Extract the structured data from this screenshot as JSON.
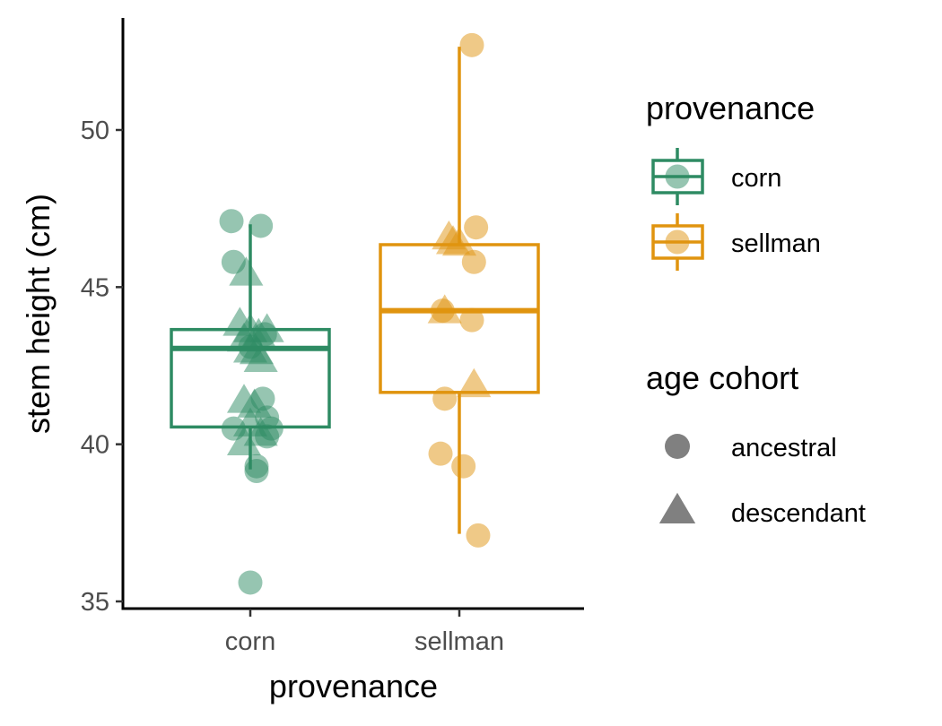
{
  "chart_data": {
    "type": "box",
    "xlabel": "provenance",
    "ylabel": "stem height (cm)",
    "ylim": [
      34.9,
      54.5
    ],
    "yticks": [
      35,
      40,
      45,
      50
    ],
    "categories": [
      "corn",
      "sellman"
    ],
    "colors": {
      "corn": "#2e8b63",
      "sellman": "#e0940f"
    },
    "grid": false,
    "legend_position": "right",
    "boxes": [
      {
        "category": "corn",
        "q1": 40.55,
        "median": 43.05,
        "q3": 43.65,
        "whisker_low": 39.2,
        "whisker_high": 47.0
      },
      {
        "category": "sellman",
        "q1": 41.65,
        "median": 44.25,
        "q3": 46.35,
        "whisker_low": 37.15,
        "whisker_high": 52.65
      }
    ],
    "points": [
      {
        "category": "corn",
        "cohort": "ancestral",
        "jitter": -0.09,
        "y": 47.1
      },
      {
        "category": "corn",
        "cohort": "ancestral",
        "jitter": 0.05,
        "y": 46.95
      },
      {
        "category": "corn",
        "cohort": "ancestral",
        "jitter": -0.08,
        "y": 45.8
      },
      {
        "category": "corn",
        "cohort": "ancestral",
        "jitter": 0.07,
        "y": 43.5
      },
      {
        "category": "corn",
        "cohort": "ancestral",
        "jitter": 0.0,
        "y": 43.1
      },
      {
        "category": "corn",
        "cohort": "ancestral",
        "jitter": 0.06,
        "y": 41.45
      },
      {
        "category": "corn",
        "cohort": "ancestral",
        "jitter": 0.08,
        "y": 40.85
      },
      {
        "category": "corn",
        "cohort": "ancestral",
        "jitter": -0.08,
        "y": 40.5
      },
      {
        "category": "corn",
        "cohort": "ancestral",
        "jitter": 0.1,
        "y": 40.5
      },
      {
        "category": "corn",
        "cohort": "ancestral",
        "jitter": 0.08,
        "y": 40.25
      },
      {
        "category": "corn",
        "cohort": "ancestral",
        "jitter": 0.03,
        "y": 39.3
      },
      {
        "category": "corn",
        "cohort": "ancestral",
        "jitter": 0.03,
        "y": 39.15
      },
      {
        "category": "corn",
        "cohort": "ancestral",
        "jitter": 0.0,
        "y": 35.6
      },
      {
        "category": "corn",
        "cohort": "descendant",
        "jitter": -0.02,
        "y": 45.4
      },
      {
        "category": "corn",
        "cohort": "descendant",
        "jitter": -0.05,
        "y": 43.8
      },
      {
        "category": "corn",
        "cohort": "descendant",
        "jitter": 0.0,
        "y": 43.6
      },
      {
        "category": "corn",
        "cohort": "descendant",
        "jitter": 0.08,
        "y": 43.6
      },
      {
        "category": "corn",
        "cohort": "descendant",
        "jitter": -0.03,
        "y": 43.3
      },
      {
        "category": "corn",
        "cohort": "descendant",
        "jitter": 0.04,
        "y": 43.45
      },
      {
        "category": "corn",
        "cohort": "descendant",
        "jitter": 0.0,
        "y": 42.95
      },
      {
        "category": "corn",
        "cohort": "descendant",
        "jitter": 0.03,
        "y": 42.9
      },
      {
        "category": "corn",
        "cohort": "descendant",
        "jitter": 0.05,
        "y": 42.65
      },
      {
        "category": "corn",
        "cohort": "descendant",
        "jitter": -0.03,
        "y": 41.35
      },
      {
        "category": "corn",
        "cohort": "descendant",
        "jitter": 0.02,
        "y": 41.2
      },
      {
        "category": "corn",
        "cohort": "descendant",
        "jitter": 0.0,
        "y": 40.6
      },
      {
        "category": "corn",
        "cohort": "descendant",
        "jitter": 0.05,
        "y": 40.3
      },
      {
        "category": "corn",
        "cohort": "descendant",
        "jitter": -0.03,
        "y": 40.0
      },
      {
        "category": "sellman",
        "cohort": "ancestral",
        "jitter": 0.06,
        "y": 52.7
      },
      {
        "category": "sellman",
        "cohort": "ancestral",
        "jitter": 0.08,
        "y": 46.9
      },
      {
        "category": "sellman",
        "cohort": "ancestral",
        "jitter": 0.07,
        "y": 45.8
      },
      {
        "category": "sellman",
        "cohort": "ancestral",
        "jitter": -0.08,
        "y": 44.25
      },
      {
        "category": "sellman",
        "cohort": "ancestral",
        "jitter": 0.06,
        "y": 43.95
      },
      {
        "category": "sellman",
        "cohort": "ancestral",
        "jitter": -0.07,
        "y": 41.45
      },
      {
        "category": "sellman",
        "cohort": "ancestral",
        "jitter": -0.09,
        "y": 39.7
      },
      {
        "category": "sellman",
        "cohort": "ancestral",
        "jitter": 0.02,
        "y": 39.3
      },
      {
        "category": "sellman",
        "cohort": "ancestral",
        "jitter": 0.09,
        "y": 37.1
      },
      {
        "category": "sellman",
        "cohort": "descendant",
        "jitter": -0.05,
        "y": 46.55
      },
      {
        "category": "sellman",
        "cohort": "descendant",
        "jitter": -0.03,
        "y": 46.4
      },
      {
        "category": "sellman",
        "cohort": "descendant",
        "jitter": 0.0,
        "y": 46.35
      },
      {
        "category": "sellman",
        "cohort": "descendant",
        "jitter": -0.07,
        "y": 44.2
      },
      {
        "category": "sellman",
        "cohort": "descendant",
        "jitter": 0.07,
        "y": 41.85
      }
    ],
    "legends": [
      {
        "title": "provenance",
        "entries": [
          "corn",
          "sellman"
        ]
      },
      {
        "title": "age cohort",
        "entries": [
          "ancestral",
          "descendant"
        ]
      }
    ]
  }
}
